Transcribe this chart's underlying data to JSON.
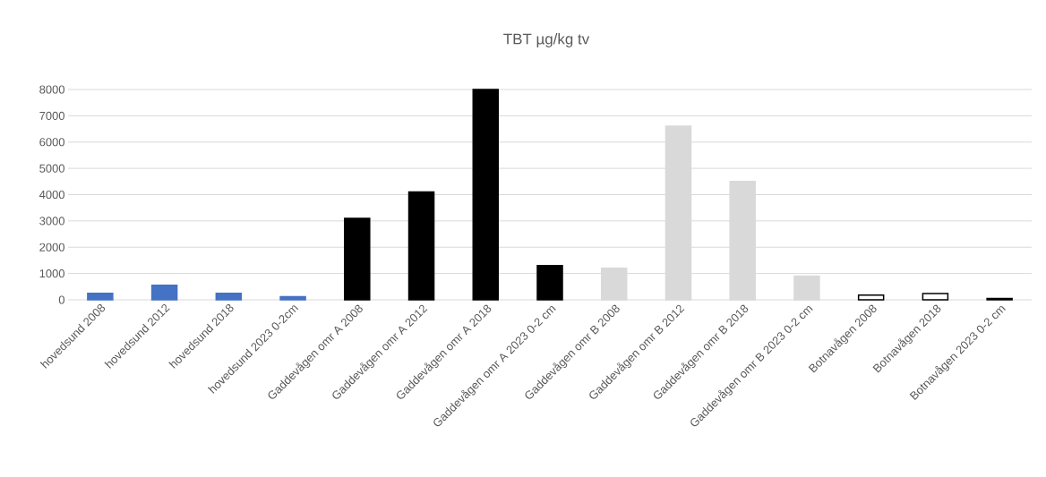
{
  "chart_data": {
    "type": "bar",
    "title": "TBT µg/kg tv",
    "categories": [
      "hovedsund 2008",
      "hovedsund 2012",
      "hovedsund 2018",
      "hovedsund 2023 0-2cm",
      "Gaddevågen omr A 2008",
      "Gaddevågen omr A 2012",
      "Gaddevågen omr A 2018",
      "Gaddevågen omr A 2023 0-2 cm",
      "Gaddevågen omr B 2008",
      "Gaddevågen omr B 2012",
      "Gaddevågen omr B 2018",
      "Gaddevågen omr B 2023 0-2 cm",
      "Botnavågen 2008",
      "Botnavågen 2018",
      "Botnavågen 2023 0-2 cm"
    ],
    "values": [
      250,
      550,
      250,
      120,
      3100,
      4100,
      8000,
      1300,
      1200,
      6600,
      4500,
      900,
      180,
      240,
      50
    ],
    "colors": [
      "#4472c4",
      "#4472c4",
      "#4472c4",
      "#4472c4",
      "#000000",
      "#000000",
      "#000000",
      "#000000",
      "#d9d9d9",
      "#d9d9d9",
      "#d9d9d9",
      "#d9d9d9",
      "#ffffff",
      "#ffffff",
      "#ffffff"
    ],
    "ylim": [
      0,
      8000
    ],
    "yticks": [
      0,
      1000,
      2000,
      3000,
      4000,
      5000,
      6000,
      7000,
      8000
    ],
    "grid": "y"
  }
}
